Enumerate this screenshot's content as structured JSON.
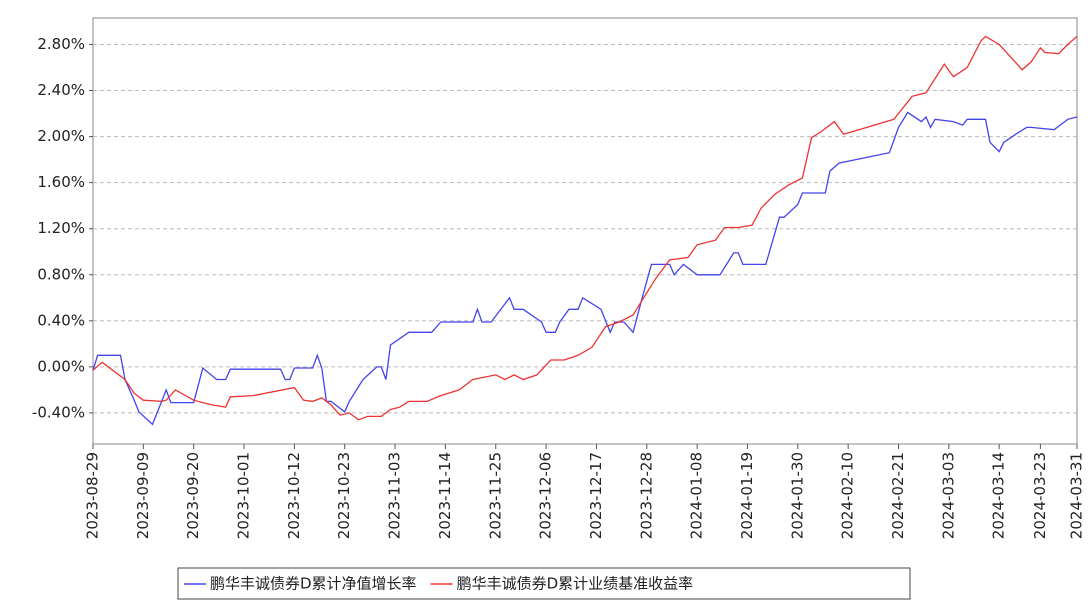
{
  "chart_data": {
    "type": "line",
    "ylim": [
      -0.67,
      3.03
    ],
    "yticks": [
      {
        "value": -0.4,
        "label": "-0.40%"
      },
      {
        "value": 0,
        "label": "0.00%"
      },
      {
        "value": 0.4,
        "label": "0.40%"
      },
      {
        "value": 0.8,
        "label": "0.80%"
      },
      {
        "value": 1.2,
        "label": "1.20%"
      },
      {
        "value": 1.6,
        "label": "1.60%"
      },
      {
        "value": 2.0,
        "label": "2.00%"
      },
      {
        "value": 2.4,
        "label": "2.40%"
      },
      {
        "value": 2.8,
        "label": "2.80%"
      }
    ],
    "xlim": [
      "2023-08-29",
      "2024-03-31"
    ],
    "xticks": [
      "2023-08-29",
      "2023-09-09",
      "2023-09-20",
      "2023-10-01",
      "2023-10-12",
      "2023-10-23",
      "2023-11-03",
      "2023-11-14",
      "2023-11-25",
      "2023-12-06",
      "2023-12-17",
      "2023-12-28",
      "2024-01-08",
      "2024-01-19",
      "2024-01-30",
      "2024-02-10",
      "2024-02-21",
      "2024-03-03",
      "2024-03-14",
      "2024-03-23",
      "2024-03-31"
    ],
    "grid": true,
    "series": [
      {
        "name": "鹏华丰诚债券D累计净值增长率",
        "color": "#4444ee",
        "x": [
          "2023-08-29",
          "2023-08-30",
          "2023-09-04",
          "2023-09-05",
          "2023-09-07",
          "2023-09-08",
          "2023-09-11",
          "2023-09-14",
          "2023-09-15",
          "2023-09-20",
          "2023-09-22",
          "2023-09-25",
          "2023-09-27",
          "2023-09-28",
          "2023-10-09",
          "2023-10-10",
          "2023-10-11",
          "2023-10-12",
          "2023-10-16",
          "2023-10-17",
          "2023-10-18",
          "2023-10-19",
          "2023-10-20",
          "2023-10-23",
          "2023-10-24",
          "2023-10-27",
          "2023-10-30",
          "2023-10-31",
          "2023-11-01",
          "2023-11-02",
          "2023-11-06",
          "2023-11-11",
          "2023-11-13",
          "2023-11-20",
          "2023-11-21",
          "2023-11-22",
          "2023-11-24",
          "2023-11-28",
          "2023-11-29",
          "2023-12-01",
          "2023-12-05",
          "2023-12-06",
          "2023-12-08",
          "2023-12-09",
          "2023-12-11",
          "2023-12-13",
          "2023-12-14",
          "2023-12-18",
          "2023-12-20",
          "2023-12-21",
          "2023-12-23",
          "2023-12-25",
          "2023-12-27",
          "2023-12-29",
          "2024-01-02",
          "2024-01-03",
          "2024-01-05",
          "2024-01-08",
          "2024-01-13",
          "2024-01-16",
          "2024-01-17",
          "2024-01-18",
          "2024-01-23",
          "2024-01-26",
          "2024-01-27",
          "2024-01-30",
          "2024-01-31",
          "2024-02-05",
          "2024-02-06",
          "2024-02-08",
          "2024-02-19",
          "2024-02-21",
          "2024-02-23",
          "2024-02-26",
          "2024-02-27",
          "2024-02-28",
          "2024-02-29",
          "2024-03-04",
          "2024-03-06",
          "2024-03-07",
          "2024-03-11",
          "2024-03-12",
          "2024-03-14",
          "2024-03-15",
          "2024-03-18",
          "2024-03-20",
          "2024-03-21",
          "2024-03-26",
          "2024-03-29",
          "2024-03-31"
        ],
        "values": [
          -0.03,
          0.1,
          0.1,
          -0.11,
          -0.29,
          -0.39,
          -0.5,
          -0.2,
          -0.31,
          -0.31,
          -0.01,
          -0.11,
          -0.11,
          -0.02,
          -0.02,
          -0.11,
          -0.11,
          -0.01,
          -0.01,
          0.1,
          -0.01,
          -0.3,
          -0.3,
          -0.39,
          -0.3,
          -0.11,
          0.0,
          0.0,
          -0.11,
          0.19,
          0.3,
          0.3,
          0.39,
          0.39,
          0.5,
          0.39,
          0.39,
          0.6,
          0.5,
          0.5,
          0.39,
          0.3,
          0.3,
          0.39,
          0.5,
          0.5,
          0.6,
          0.5,
          0.3,
          0.39,
          0.39,
          0.3,
          0.6,
          0.89,
          0.89,
          0.8,
          0.89,
          0.8,
          0.8,
          0.99,
          0.99,
          0.89,
          0.89,
          1.3,
          1.3,
          1.41,
          1.51,
          1.51,
          1.7,
          1.77,
          1.86,
          2.08,
          2.21,
          2.13,
          2.17,
          2.08,
          2.15,
          2.13,
          2.1,
          2.15,
          2.15,
          1.95,
          1.87,
          1.95,
          2.03,
          2.08,
          2.08,
          2.06,
          2.15,
          2.17
        ]
      },
      {
        "name": "鹏华丰诚债券D累计业绩基准收益率",
        "color": "#ee3333",
        "x": [
          "2023-08-29",
          "2023-08-31",
          "2023-09-05",
          "2023-09-07",
          "2023-09-09",
          "2023-09-13",
          "2023-09-14",
          "2023-09-16",
          "2023-09-20",
          "2023-09-22",
          "2023-09-24",
          "2023-09-27",
          "2023-09-28",
          "2023-10-03",
          "2023-10-12",
          "2023-10-14",
          "2023-10-16",
          "2023-10-18",
          "2023-10-20",
          "2023-10-22",
          "2023-10-24",
          "2023-10-26",
          "2023-10-28",
          "2023-10-31",
          "2023-11-02",
          "2023-11-04",
          "2023-11-06",
          "2023-11-10",
          "2023-11-13",
          "2023-11-17",
          "2023-11-20",
          "2023-11-25",
          "2023-11-27",
          "2023-11-29",
          "2023-12-01",
          "2023-12-04",
          "2023-12-07",
          "2023-12-10",
          "2023-12-13",
          "2023-12-16",
          "2023-12-19",
          "2023-12-22",
          "2023-12-25",
          "2023-12-27",
          "2023-12-30",
          "2024-01-02",
          "2024-01-06",
          "2024-01-08",
          "2024-01-12",
          "2024-01-14",
          "2024-01-17",
          "2024-01-20",
          "2024-01-22",
          "2024-01-25",
          "2024-01-28",
          "2024-01-31",
          "2024-02-02",
          "2024-02-04",
          "2024-02-07",
          "2024-02-09",
          "2024-02-20",
          "2024-02-24",
          "2024-02-27",
          "2024-03-02",
          "2024-03-04",
          "2024-03-07",
          "2024-03-10",
          "2024-03-11",
          "2024-03-14",
          "2024-03-17",
          "2024-03-19",
          "2024-03-21",
          "2024-03-23",
          "2024-03-24",
          "2024-03-27",
          "2024-03-29",
          "2024-03-31"
        ],
        "values": [
          -0.03,
          0.04,
          -0.11,
          -0.23,
          -0.29,
          -0.3,
          -0.29,
          -0.2,
          -0.29,
          -0.31,
          -0.33,
          -0.35,
          -0.26,
          -0.25,
          -0.18,
          -0.29,
          -0.3,
          -0.27,
          -0.33,
          -0.42,
          -0.4,
          -0.46,
          -0.43,
          -0.43,
          -0.37,
          -0.35,
          -0.3,
          -0.3,
          -0.25,
          -0.2,
          -0.11,
          -0.07,
          -0.11,
          -0.07,
          -0.11,
          -0.07,
          0.06,
          0.06,
          0.1,
          0.17,
          0.35,
          0.39,
          0.45,
          0.58,
          0.77,
          0.93,
          0.95,
          1.06,
          1.1,
          1.21,
          1.21,
          1.23,
          1.38,
          1.5,
          1.58,
          1.64,
          1.99,
          2.04,
          2.13,
          2.02,
          2.15,
          2.35,
          2.38,
          2.63,
          2.52,
          2.6,
          2.83,
          2.87,
          2.8,
          2.67,
          2.58,
          2.65,
          2.77,
          2.73,
          2.72,
          2.8,
          2.87
        ]
      }
    ]
  }
}
